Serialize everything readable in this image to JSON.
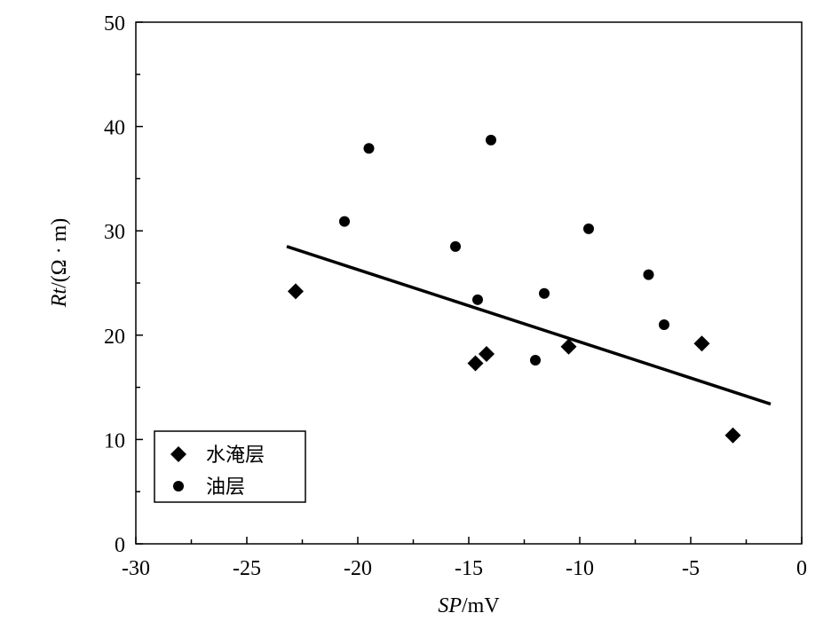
{
  "chart_data": {
    "type": "scatter",
    "xlabel_italic": "SP",
    "xlabel_unit": "/mV",
    "ylabel_italic": "Rt",
    "ylabel_unit": "/(Ω · m)",
    "xlim": [
      -30,
      0
    ],
    "ylim": [
      0,
      50
    ],
    "xticks": [
      -30,
      -25,
      -20,
      -15,
      -10,
      -5,
      0
    ],
    "yticks": [
      0,
      10,
      20,
      30,
      40,
      50
    ],
    "grid": false,
    "legend_placement": "bottom-left",
    "series": [
      {
        "name": "水淹层",
        "marker": "diamond",
        "color": "#000000",
        "points": [
          {
            "x": -22.8,
            "y": 24.2
          },
          {
            "x": -14.7,
            "y": 17.3
          },
          {
            "x": -14.2,
            "y": 18.2
          },
          {
            "x": -10.5,
            "y": 18.9
          },
          {
            "x": -4.5,
            "y": 19.2
          },
          {
            "x": -3.1,
            "y": 10.4
          }
        ]
      },
      {
        "name": "油层",
        "marker": "circle",
        "color": "#000000",
        "points": [
          {
            "x": -20.6,
            "y": 30.9
          },
          {
            "x": -19.5,
            "y": 37.9
          },
          {
            "x": -15.6,
            "y": 28.5
          },
          {
            "x": -14.6,
            "y": 23.4
          },
          {
            "x": -14.0,
            "y": 38.7
          },
          {
            "x": -12.0,
            "y": 17.6
          },
          {
            "x": -11.6,
            "y": 24.0
          },
          {
            "x": -9.6,
            "y": 30.2
          },
          {
            "x": -6.9,
            "y": 25.8
          },
          {
            "x": -6.2,
            "y": 21.0
          }
        ]
      }
    ],
    "trendline": {
      "x": [
        -23.2,
        -1.4
      ],
      "y": [
        28.5,
        13.4
      ]
    }
  }
}
